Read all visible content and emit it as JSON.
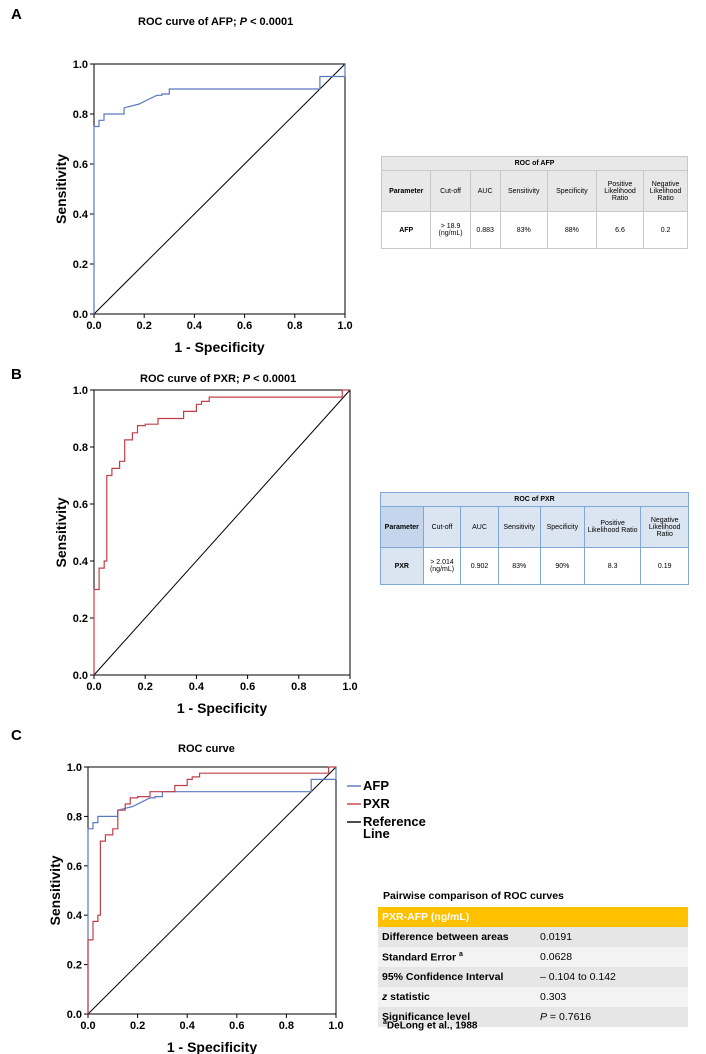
{
  "panels": {
    "a": {
      "letter": "A",
      "title_main": "ROC curve of AFP; ",
      "title_p": "P",
      "title_rest": " < 0.0001"
    },
    "b": {
      "letter": "B",
      "title_main": "ROC curve of PXR; ",
      "title_p": "P",
      "title_rest": " < 0.0001"
    },
    "c": {
      "letter": "C",
      "title": "ROC curve"
    }
  },
  "colors": {
    "afp": "#5a78c0",
    "pxr": "#c0404a",
    "reference": "#000000"
  },
  "chart_data": [
    {
      "type": "line",
      "title": "ROC curve of AFP; P < 0.0001",
      "xlabel": "1 - Specificity",
      "ylabel": "Sensitivity",
      "xlim": [
        0,
        1
      ],
      "ylim": [
        0,
        1
      ],
      "xticks": [
        "0.0",
        "0.2",
        "0.4",
        "0.6",
        "0.8",
        "1.0"
      ],
      "yticks": [
        "0.0",
        "0.2",
        "0.4",
        "0.6",
        "0.8",
        "1.0"
      ],
      "series": [
        {
          "color": "#5a78c0",
          "x": [
            0,
            0,
            0.02,
            0.02,
            0.04,
            0.04,
            0.12,
            0.12,
            0.18,
            0.22,
            0.25,
            0.27,
            0.27,
            0.3,
            0.3,
            0.9,
            0.9,
            1,
            1
          ],
          "y": [
            0,
            0.75,
            0.75,
            0.775,
            0.775,
            0.8,
            0.8,
            0.825,
            0.84,
            0.86,
            0.875,
            0.875,
            0.88,
            0.88,
            0.9,
            0.9,
            0.95,
            0.95,
            1
          ]
        },
        {
          "color": "#000000",
          "x": [
            0,
            1
          ],
          "y": [
            0,
            1
          ]
        }
      ]
    },
    {
      "type": "line",
      "title": "ROC curve of PXR; P < 0.0001",
      "xlabel": "1 - Specificity",
      "ylabel": "Sensitivity",
      "xlim": [
        0,
        1
      ],
      "ylim": [
        0,
        1
      ],
      "xticks": [
        "0.0",
        "0.2",
        "0.4",
        "0.6",
        "0.8",
        "1.0"
      ],
      "yticks": [
        "0.0",
        "0.2",
        "0.4",
        "0.6",
        "0.8",
        "1.0"
      ],
      "series": [
        {
          "color": "#c0404a",
          "x": [
            0,
            0,
            0.02,
            0.02,
            0.04,
            0.04,
            0.05,
            0.05,
            0.07,
            0.07,
            0.1,
            0.1,
            0.12,
            0.12,
            0.15,
            0.15,
            0.17,
            0.17,
            0.2,
            0.2,
            0.25,
            0.25,
            0.27,
            0.27,
            0.35,
            0.35,
            0.4,
            0.4,
            0.42,
            0.42,
            0.45,
            0.45,
            0.97,
            0.97,
            1
          ],
          "y": [
            0,
            0.3,
            0.3,
            0.375,
            0.375,
            0.4,
            0.4,
            0.7,
            0.7,
            0.725,
            0.725,
            0.75,
            0.75,
            0.825,
            0.825,
            0.85,
            0.85,
            0.875,
            0.875,
            0.88,
            0.88,
            0.9,
            0.9,
            0.9,
            0.9,
            0.925,
            0.925,
            0.95,
            0.95,
            0.96,
            0.96,
            0.975,
            0.975,
            1,
            1
          ]
        },
        {
          "color": "#000000",
          "x": [
            0,
            1
          ],
          "y": [
            0,
            1
          ]
        }
      ]
    },
    {
      "type": "line",
      "title": "ROC curve",
      "xlabel": "1 - Specificity",
      "ylabel": "Sensitivity",
      "xlim": [
        0,
        1
      ],
      "ylim": [
        0,
        1
      ],
      "xticks": [
        "0.0",
        "0.2",
        "0.4",
        "0.6",
        "0.8",
        "1.0"
      ],
      "yticks": [
        "0.0",
        "0.2",
        "0.4",
        "0.6",
        "0.8",
        "1.0"
      ],
      "legend": "right",
      "series": [
        {
          "name": "AFP",
          "color": "#5a78c0",
          "x": [
            0,
            0,
            0.02,
            0.02,
            0.04,
            0.04,
            0.12,
            0.12,
            0.18,
            0.22,
            0.25,
            0.27,
            0.27,
            0.3,
            0.3,
            0.9,
            0.9,
            1,
            1
          ],
          "y": [
            0,
            0.75,
            0.75,
            0.775,
            0.775,
            0.8,
            0.8,
            0.825,
            0.84,
            0.86,
            0.875,
            0.875,
            0.88,
            0.88,
            0.9,
            0.9,
            0.95,
            0.95,
            1
          ]
        },
        {
          "name": "PXR",
          "color": "#c0404a",
          "x": [
            0,
            0,
            0.02,
            0.02,
            0.04,
            0.04,
            0.05,
            0.05,
            0.07,
            0.07,
            0.1,
            0.1,
            0.12,
            0.12,
            0.15,
            0.15,
            0.17,
            0.17,
            0.2,
            0.2,
            0.25,
            0.25,
            0.27,
            0.27,
            0.35,
            0.35,
            0.4,
            0.4,
            0.42,
            0.42,
            0.45,
            0.45,
            0.97,
            0.97,
            1
          ],
          "y": [
            0,
            0.3,
            0.3,
            0.375,
            0.375,
            0.4,
            0.4,
            0.7,
            0.7,
            0.725,
            0.725,
            0.75,
            0.75,
            0.825,
            0.825,
            0.85,
            0.85,
            0.875,
            0.875,
            0.88,
            0.88,
            0.9,
            0.9,
            0.9,
            0.9,
            0.925,
            0.925,
            0.95,
            0.95,
            0.96,
            0.96,
            0.975,
            0.975,
            1,
            1
          ]
        },
        {
          "name": "Reference Line",
          "color": "#000000",
          "x": [
            0,
            1
          ],
          "y": [
            0,
            1
          ]
        }
      ]
    },
    {
      "type": "table",
      "title": "ROC of AFP",
      "columns": [
        "Parameter",
        "Cut-off",
        "AUC",
        "Sensitivity",
        "Specificity",
        "Positive Likelihood Ratio",
        "Negative Likelihood Ratio"
      ],
      "rows": [
        [
          "AFP",
          "> 18.9 (ng/mL)",
          "0.883",
          "83%",
          "88%",
          "6.6",
          "0.2"
        ]
      ]
    },
    {
      "type": "table",
      "title": "ROC of PXR",
      "columns": [
        "Parameter",
        "Cut-off",
        "AUC",
        "Sensitivity",
        "Specificity",
        "Positive Likelihood Ratio",
        "Negative Likelihood Ratio"
      ],
      "rows": [
        [
          "PXR",
          "> 2.014 (ng/mL)",
          "0.902",
          "83%",
          "90%",
          "8.3",
          "0.19"
        ]
      ]
    },
    {
      "type": "table",
      "title": "Pairwise comparison of ROC curves",
      "header": "PXR-AFP (ng/mL)",
      "rows": [
        [
          "Difference between areas",
          "0.0191"
        ],
        [
          "Standard Error a",
          "0.0628"
        ],
        [
          "95% Confidence Interval",
          "– 0.104 to 0.142"
        ],
        [
          "z statistic",
          "0.303"
        ],
        [
          "Significance level",
          "P = 0.7616"
        ]
      ],
      "footnote": "aDeLong et al., 1988"
    }
  ],
  "pairwise": {
    "title": "Pairwise comparison of ROC curves",
    "header": "PXR-AFP (ng/mL)",
    "rows": [
      {
        "label": "Difference between areas",
        "value": "0.0191"
      },
      {
        "label": "Standard Error ",
        "label_sup": "a",
        "value": "0.0628"
      },
      {
        "label": "95% Confidence Interval",
        "value": "– 0.104 to 0.142"
      },
      {
        "label_italic": "z",
        "label": " statistic",
        "value": "0.303"
      },
      {
        "label": "Significance level",
        "value_italic": "P",
        "value": " = 0.7616"
      }
    ],
    "footnote_sup": "a",
    "footnote": "DeLong et al., 1988"
  }
}
